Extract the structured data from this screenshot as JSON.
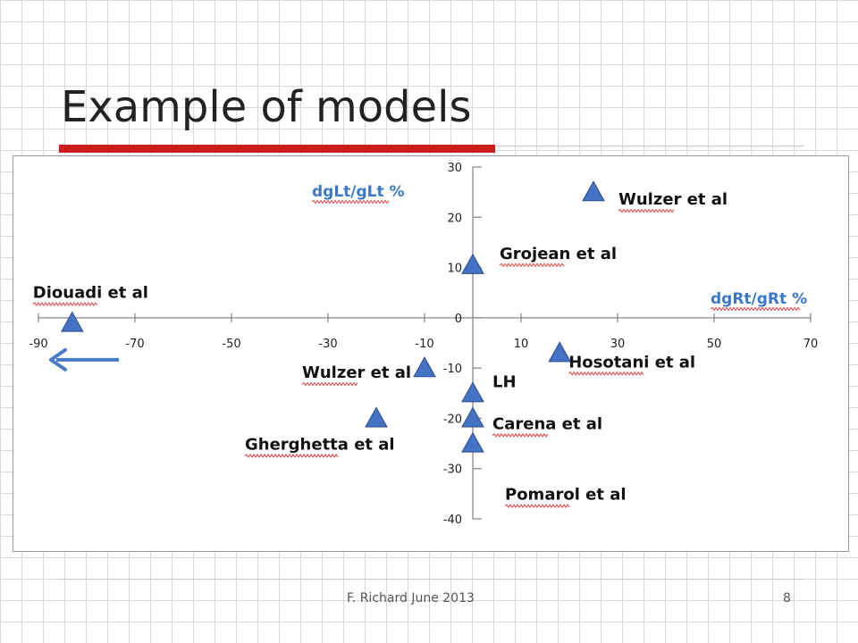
{
  "title": "Example of models",
  "footer": {
    "text": "F. Richard June 2013",
    "page": "8"
  },
  "chart_data": {
    "type": "scatter",
    "title": "",
    "xlabel": "dgRt/gRt %",
    "ylabel": "dgLt/gLt %",
    "xlim": [
      -90,
      70
    ],
    "ylim": [
      -40,
      30
    ],
    "x_ticks": [
      -90,
      -70,
      -50,
      -30,
      -10,
      10,
      30,
      50,
      70
    ],
    "y_ticks": [
      30,
      20,
      10,
      0,
      -10,
      -20,
      -30,
      -40
    ],
    "marker": "triangle",
    "marker_color": "#4472c4",
    "label_color": "#3a78c8",
    "grid": false,
    "arrow": {
      "direction": "left",
      "color": "#4a7bc8"
    },
    "points": [
      {
        "label": "Wulzer et al",
        "x": 25,
        "y": 25
      },
      {
        "label": "Grojean et al",
        "x": 0,
        "y": 10.5
      },
      {
        "label": "Diouadi et al",
        "x": -83,
        "y": -1
      },
      {
        "label": "Hosotani et al",
        "x": 18,
        "y": -7
      },
      {
        "label": "Wulzer et al",
        "x": -10,
        "y": -10
      },
      {
        "label": "LH",
        "x": 0,
        "y": -15
      },
      {
        "label": "Carena et al",
        "x": 0,
        "y": -20
      },
      {
        "label": "Gherghetta et al",
        "x": -20,
        "y": -20
      },
      {
        "label": "Pomarol et al",
        "x": 0,
        "y": -25
      }
    ]
  }
}
